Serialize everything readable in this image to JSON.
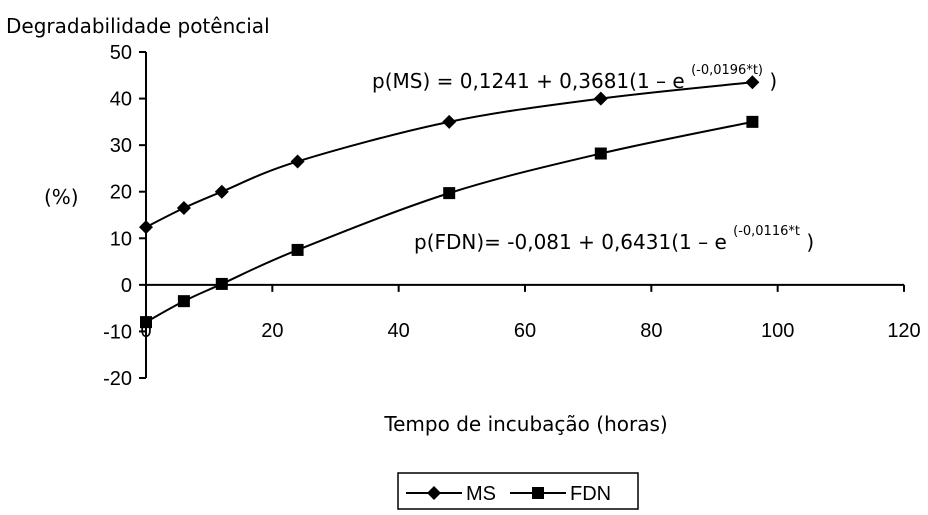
{
  "chart_data": {
    "type": "line",
    "title": "Degradabilidade potêncial",
    "xlabel": "Tempo de incubação (horas)",
    "ylabel": "(%)",
    "xlim": [
      0,
      120
    ],
    "ylim": [
      -20,
      50
    ],
    "xticks": [
      0,
      20,
      40,
      60,
      80,
      100,
      120
    ],
    "yticks": [
      -20,
      -10,
      0,
      10,
      20,
      30,
      40,
      50
    ],
    "xtick_labels": [
      "0",
      "20",
      "40",
      "60",
      "80",
      "100",
      "120"
    ],
    "ytick_labels": [
      "-20",
      "-10",
      "0",
      "10",
      "20",
      "30",
      "40",
      "50"
    ],
    "grid": false,
    "legend_position": "bottom-center",
    "series": [
      {
        "name": "MS",
        "marker": "diamond",
        "x": [
          0,
          6,
          12,
          24,
          48,
          72,
          96
        ],
        "values": [
          12.4,
          16.5,
          20.0,
          26.5,
          35.0,
          40.0,
          43.5
        ],
        "equation": {
          "base": "p(MS) = 0,1241 + 0,3681(1 – e",
          "exponent": "(-0,0196*t)",
          "close": ")"
        }
      },
      {
        "name": "FDN",
        "marker": "square",
        "x": [
          0,
          6,
          12,
          24,
          48,
          72,
          96
        ],
        "values": [
          -8.0,
          -3.5,
          0.2,
          7.5,
          19.7,
          28.2,
          35.0
        ],
        "equation": {
          "base": "p(FDN)= -0,081 + 0,6431(1 – e",
          "exponent": "(-0,0116*t",
          "close": ")"
        }
      }
    ]
  }
}
